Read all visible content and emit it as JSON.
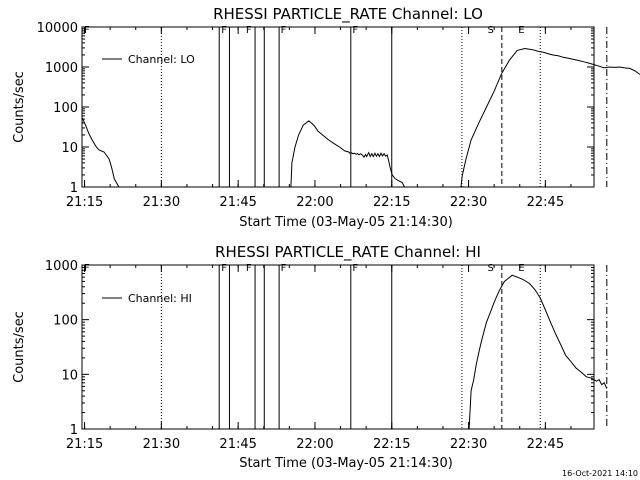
{
  "footer": {
    "timestamp": "16-Oct-2021 14:10"
  },
  "colors": {
    "background": "#ffffff",
    "foreground": "#000000"
  },
  "chart_data": [
    {
      "type": "line",
      "title": "RHESSI PARTICLE_RATE Channel: LO",
      "xlabel": "Start Time (03-May-05 21:14:30)",
      "ylabel": "Counts/sec",
      "y_scale": "log",
      "ylim": [
        1,
        10000
      ],
      "y_ticks": [
        1,
        10,
        100,
        1000,
        10000
      ],
      "y_tick_labels": [
        "1",
        "10",
        "100",
        "1000",
        "10000"
      ],
      "xlim": [
        "21:14:30",
        "22:54:30"
      ],
      "x_ticks": [
        "21:15",
        "21:30",
        "21:45",
        "22:00",
        "22:15",
        "22:30",
        "22:45"
      ],
      "grid": false,
      "legend_position": "top-left",
      "series": [
        {
          "name": "Channel: LO",
          "time_minutes_after_21:14:30": [
            0,
            0.7,
            1.3,
            2,
            2.8,
            3.3,
            4.3,
            5.3,
            5.8,
            6.3,
            7.2
          ],
          "values": [
            55,
            35,
            22,
            15,
            10,
            8.5,
            7.5,
            5,
            3,
            1.6,
            1
          ],
          "segments": [
            {
              "x": [
                0,
                0.7,
                1.3,
                2,
                2.8,
                3.3,
                4.3,
                5.3,
                5.8,
                6.3,
                7.2
              ],
              "y": [
                55,
                35,
                22,
                15,
                10,
                8.5,
                7.5,
                5,
                3,
                1.6,
                1
              ]
            },
            {
              "x": [
                40.8,
                41,
                41.6,
                42.3,
                43.2,
                44.3,
                45.3,
                46.1,
                47,
                48.2,
                49.3,
                50.3,
                51.3,
                52.1,
                52.3,
                52.6,
                52.9,
                53.2,
                53.5,
                53.8,
                54.1,
                54.4,
                54.7,
                55.1,
                55.4,
                55.6,
                56,
                56.3,
                56.6,
                56.9,
                57.2,
                57.5,
                57.8,
                58.1,
                58.4,
                58.7,
                59,
                59.3,
                59.6,
                59.9,
                60.2,
                60.6,
                61.2,
                62,
                62.5,
                63
              ],
              "y": [
                1,
                4,
                10,
                20,
                35,
                45,
                35,
                25,
                20,
                15,
                12,
                10,
                8,
                7.5,
                7,
                7.2,
                6.8,
                7,
                6.6,
                6.8,
                6.4,
                6.8,
                6.4,
                5.6,
                6.5,
                5.8,
                7.2,
                5.8,
                6.8,
                5.8,
                7,
                5.9,
                6.8,
                5.8,
                7,
                6,
                6.8,
                5.9,
                6.3,
                4.5,
                3,
                2,
                1.6,
                1.4,
                1.3,
                1
              ]
            },
            {
              "x": [
                74,
                74.3,
                75,
                76,
                77.5,
                79,
                80.5,
                82,
                83.5,
                85,
                86.5,
                88,
                89,
                90.3,
                91.3,
                92,
                93,
                94,
                95,
                96,
                97,
                98,
                99,
                100,
                101,
                102,
                103,
                104,
                105,
                106,
                107,
                108,
                109,
                110,
                111
              ],
              "y": [
                1,
                2,
                5,
                15,
                40,
                100,
                250,
                700,
                1500,
                2600,
                2900,
                2700,
                2500,
                2300,
                2100,
                2000,
                1900,
                1750,
                1650,
                1550,
                1450,
                1350,
                1250,
                1150,
                1050,
                950,
                1000,
                980,
                1000,
                950,
                920,
                800,
                650,
                550,
                520
              ]
            }
          ]
        }
      ],
      "annotations": {
        "solid_lines_minutes": [
          26.8,
          28.8,
          33.8,
          35.6,
          38.5,
          52.5,
          60.5
        ],
        "dotted_lines_minutes": [
          15.5,
          74.2,
          89.5
        ],
        "dashed_lines_minutes": [
          82.0
        ],
        "dashdot_lines_minutes": [
          102.5
        ],
        "flags": [
          {
            "label": "F",
            "at_minutes": 0.4
          },
          {
            "label": "F",
            "at_minutes": 27.2
          },
          {
            "label": "F",
            "at_minutes": 32.0
          },
          {
            "label": "F",
            "at_minutes": 38.8
          },
          {
            "label": "F",
            "at_minutes": 52.8
          },
          {
            "label": "S",
            "at_minutes": 79.2
          },
          {
            "label": "E",
            "at_minutes": 85.2
          }
        ]
      }
    },
    {
      "type": "line",
      "title": "RHESSI PARTICLE_RATE Channel: HI",
      "xlabel": "Start Time (03-May-05 21:14:30)",
      "ylabel": "Counts/sec",
      "y_scale": "log",
      "ylim": [
        1,
        1000
      ],
      "y_ticks": [
        1,
        10,
        100,
        1000
      ],
      "y_tick_labels": [
        "1",
        "10",
        "100",
        "1000"
      ],
      "xlim": [
        "21:14:30",
        "22:54:30"
      ],
      "x_ticks": [
        "21:15",
        "21:30",
        "21:45",
        "22:00",
        "22:15",
        "22:30",
        "22:45"
      ],
      "grid": false,
      "legend_position": "top-left",
      "series": [
        {
          "name": "Channel: HI",
          "segments": [
            {
              "x": [
                75.6,
                76,
                76.5,
                77,
                77.5,
                78,
                78.5,
                79,
                79.8,
                80.5,
                81.5,
                82.5,
                84,
                85,
                86,
                86.8,
                87.5,
                88.5,
                89.5,
                90.5,
                91.5,
                92.5,
                93.5,
                94.5,
                95.5,
                96.5,
                97.5,
                98.5,
                99.5,
                100.5,
                101,
                101.5,
                102,
                102.5
              ],
              "y": [
                1,
                5,
                8,
                15,
                25,
                40,
                60,
                90,
                140,
                210,
                340,
                500,
                650,
                600,
                550,
                500,
                450,
                350,
                250,
                150,
                90,
                55,
                35,
                22,
                17,
                13,
                11,
                9,
                8.5,
                7.5,
                8,
                6.5,
                7,
                5.5
              ]
            }
          ]
        }
      ],
      "annotations": {
        "solid_lines_minutes": [
          26.8,
          28.8,
          33.8,
          35.6,
          38.5,
          52.5,
          60.5
        ],
        "dotted_lines_minutes": [
          15.5,
          74.2,
          89.5
        ],
        "dashed_lines_minutes": [
          82.0
        ],
        "dashdot_lines_minutes": [
          102.5
        ],
        "flags": [
          {
            "label": "F",
            "at_minutes": 0.4
          },
          {
            "label": "F",
            "at_minutes": 27.2
          },
          {
            "label": "F",
            "at_minutes": 32.0
          },
          {
            "label": "F",
            "at_minutes": 38.8
          },
          {
            "label": "F",
            "at_minutes": 52.8
          },
          {
            "label": "S",
            "at_minutes": 79.2
          },
          {
            "label": "E",
            "at_minutes": 85.2
          }
        ]
      }
    }
  ]
}
